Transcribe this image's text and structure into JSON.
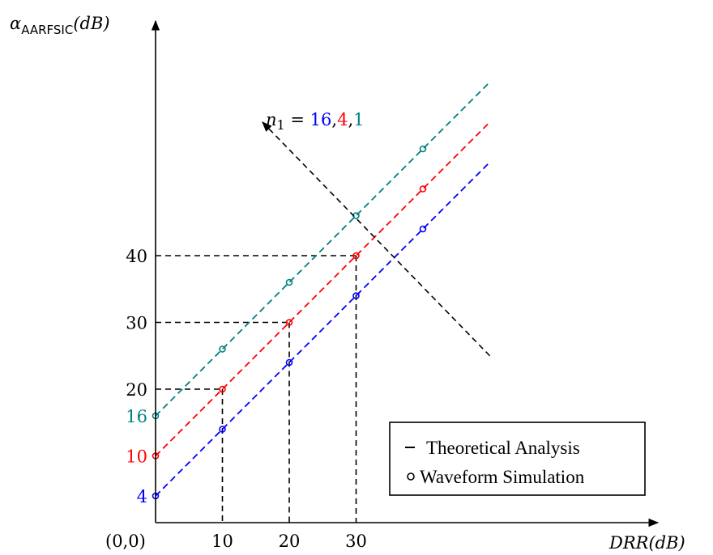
{
  "chart_data": {
    "type": "line",
    "ylabel": {
      "symbol": "α",
      "subscript": "AARFSIC",
      "unit": "(dB)"
    },
    "xlabel": "DRR(dB)",
    "origin_label": "(0,0)",
    "xticks": [
      10,
      20,
      30
    ],
    "yticks": [
      20,
      30,
      40
    ],
    "xlim": [
      0,
      50
    ],
    "ylim": [
      0,
      70
    ],
    "grid": false,
    "series": [
      {
        "color": "#0000ff",
        "intercept": 4,
        "intercept_label": "4",
        "theory": {
          "x": [
            0,
            50
          ],
          "y": [
            4,
            54
          ]
        },
        "simulation": {
          "x": [
            0,
            10,
            20,
            30,
            40
          ],
          "y": [
            4,
            14,
            24,
            34,
            44
          ]
        }
      },
      {
        "color": "#ff0000",
        "intercept": 10,
        "intercept_label": "10",
        "theory": {
          "x": [
            0,
            50
          ],
          "y": [
            10,
            60
          ]
        },
        "simulation": {
          "x": [
            0,
            10,
            20,
            30,
            40
          ],
          "y": [
            10,
            20,
            30,
            40,
            50
          ]
        }
      },
      {
        "color": "#008080",
        "intercept": 16,
        "intercept_label": "16",
        "theory": {
          "x": [
            0,
            50
          ],
          "y": [
            16,
            66
          ]
        },
        "simulation": {
          "x": [
            0,
            10,
            20,
            30,
            40
          ],
          "y": [
            16,
            26,
            36,
            46,
            56
          ]
        }
      }
    ],
    "reference_lines": [
      {
        "x": 10,
        "y": 20
      },
      {
        "x": 20,
        "y": 30
      },
      {
        "x": 30,
        "y": 40
      }
    ],
    "annotation": {
      "text_prefix": "n",
      "text_subscript": "1",
      "text_equals": " = ",
      "parts": [
        {
          "text": "16",
          "color": "#0000ff"
        },
        {
          "text": ",",
          "color": "#000000"
        },
        {
          "text": "4",
          "color": "#ff0000"
        },
        {
          "text": ",",
          "color": "#000000"
        },
        {
          "text": "1",
          "color": "#008080"
        }
      ],
      "arrow_from": [
        50,
        25
      ],
      "arrow_to": [
        16,
        60
      ]
    },
    "legend": {
      "position": "bottom-right",
      "entries": [
        {
          "marker": "line",
          "label": "Theoretical Analysis"
        },
        {
          "marker": "circle",
          "label": "Waveform Simulation"
        }
      ]
    }
  }
}
